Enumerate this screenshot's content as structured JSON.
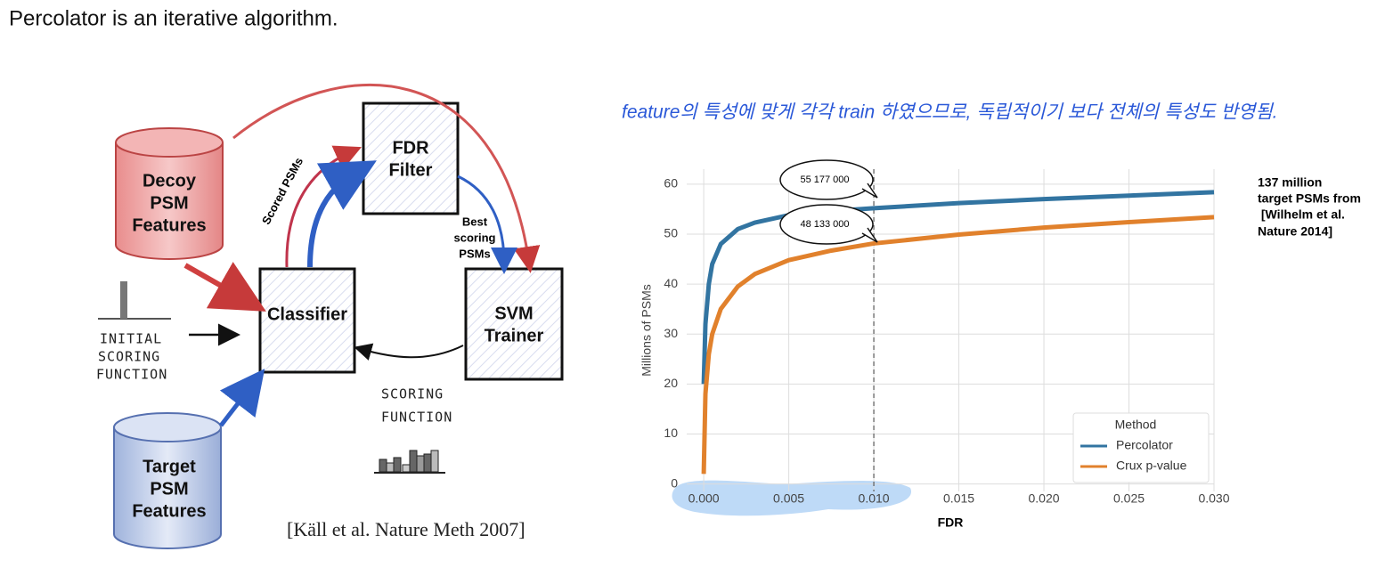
{
  "title": "Percolator is an iterative algorithm.",
  "diagram": {
    "nodes": [
      {
        "lines": [
          "Decoy",
          "PSM",
          "Features"
        ]
      },
      {
        "lines": [
          "Target",
          "PSM",
          "Features"
        ]
      },
      {
        "lines": [
          "FDR",
          "Filter"
        ]
      },
      {
        "lines": [
          "Classifier"
        ]
      },
      {
        "lines": [
          "SVM",
          "Trainer"
        ]
      }
    ],
    "edge_labels": [
      {
        "lines": [
          "Scored PSMs"
        ]
      },
      {
        "lines": [
          "Best",
          "scoring",
          "PSMs"
        ]
      },
      {
        "lines": [
          "INITIAL",
          "SCORING",
          "FUNCTION"
        ]
      },
      {
        "lines": [
          "SCORING",
          "FUNCTION"
        ]
      }
    ],
    "citation": "[Käll et al. Nature Meth 2007]"
  },
  "note": "feature의 특성에 맞게 각각 train 하였으므로, 독립적이기 보다 전체의 특성도 반영됨.",
  "side_note": [
    "137 million",
    "target PSMs from",
    " [Wilhelm et al.",
    "Nature 2014]"
  ],
  "chart_data": {
    "type": "line",
    "x_label": "FDR",
    "y_label": "Millions of PSMs",
    "x": [
      0,
      0.0001,
      0.0003,
      0.0005,
      0.001,
      0.002,
      0.003,
      0.005,
      0.0075,
      0.01,
      0.015,
      0.02,
      0.025,
      0.03
    ],
    "series": [
      {
        "name": "Percolator",
        "color": "#3274a1",
        "values": [
          20,
          32,
          40,
          44,
          48,
          51,
          52.3,
          53.8,
          54.6,
          55.177,
          56.2,
          57,
          57.7,
          58.4
        ]
      },
      {
        "name": "Crux p-value",
        "color": "#e1812c",
        "values": [
          2,
          18,
          26,
          30,
          35,
          39.5,
          42,
          44.8,
          46.7,
          48.133,
          49.9,
          51.3,
          52.4,
          53.4
        ]
      }
    ],
    "xlim": [
      -0.001,
      0.03
    ],
    "ylim": [
      -1.5,
      63
    ],
    "xticks": [
      {
        "value": 0,
        "label": "0.000"
      },
      {
        "value": 0.005,
        "label": "0.005"
      },
      {
        "value": 0.01,
        "label": "0.010"
      },
      {
        "value": 0.015,
        "label": "0.015"
      },
      {
        "value": 0.02,
        "label": "0.020"
      },
      {
        "value": 0.025,
        "label": "0.025"
      },
      {
        "value": 0.03,
        "label": "0.030"
      }
    ],
    "yticks": [
      0,
      10,
      20,
      30,
      40,
      50,
      60
    ],
    "grid": true,
    "vline": 0.01,
    "legend_title": "Method",
    "legend_position": "lower right",
    "annotations": [
      "55 177 000",
      "48 133 000"
    ]
  }
}
